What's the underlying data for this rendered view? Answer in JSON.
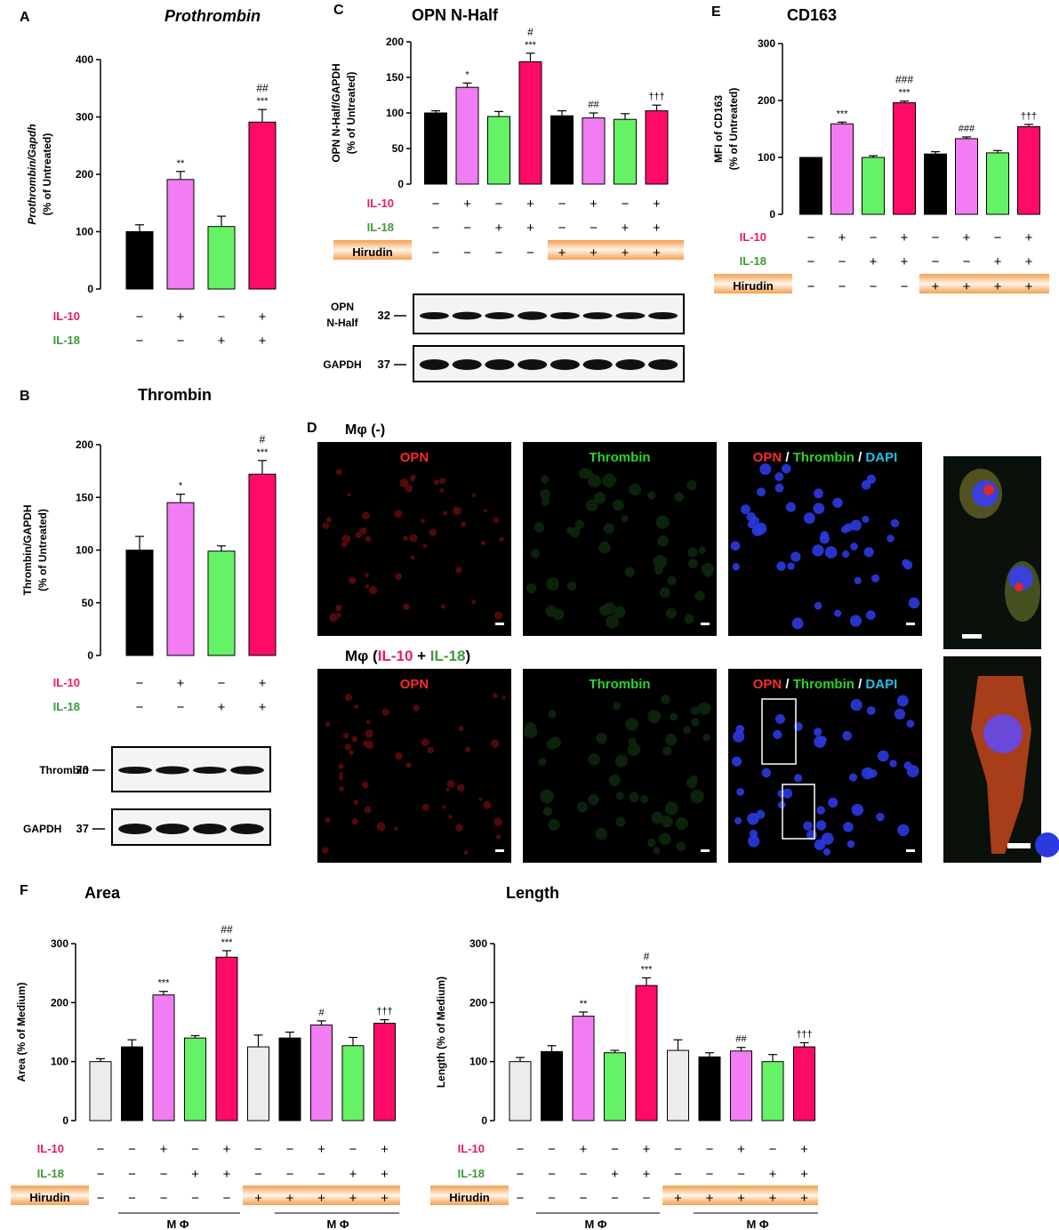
{
  "colors": {
    "untreated": "#000000",
    "il10": "#f27cf2",
    "il18": "#66f266",
    "combo": "#ff0a66",
    "medium": "#ececec",
    "il10_text": "#e8196a",
    "il18_text": "#3a9a3a",
    "opn_red": "#ff2a2a",
    "thrombin_green": "#2ad42a",
    "dapi_blue": "#22c0e8",
    "hirudin_band": "#f5a050"
  },
  "treatment_labels": {
    "il10": "IL-10",
    "il18": "IL-18",
    "hirudin": "Hirudin",
    "plus": "+",
    "minus": "−"
  },
  "chart_data": [
    {
      "panel": "A",
      "type": "bar",
      "title": "Prothrombin",
      "ylabel": "Prothrombin/Gapdh",
      "ylabel2": "(% of Untreated)",
      "yticks": [
        0,
        100,
        200,
        300,
        400
      ],
      "ylim": [
        0,
        400
      ],
      "conditions": {
        "il10": [
          "−",
          "+",
          "−",
          "+"
        ],
        "il18": [
          "−",
          "−",
          "+",
          "+"
        ]
      },
      "groups": [
        "untreated",
        "il10",
        "il18",
        "combo"
      ],
      "values": [
        100,
        191,
        109,
        291
      ],
      "errors": [
        12,
        14,
        18,
        22
      ],
      "annotations": [
        "",
        "**",
        "",
        "***"
      ],
      "annotations2": [
        "",
        "",
        "",
        "##"
      ]
    },
    {
      "panel": "B",
      "type": "bar",
      "title": "Thrombin",
      "ylabel": "Thrombin/GAPDH",
      "ylabel2": "(% of Untreated)",
      "yticks": [
        0,
        50,
        100,
        150,
        200
      ],
      "ylim": [
        0,
        200
      ],
      "conditions": {
        "il10": [
          "−",
          "+",
          "−",
          "+"
        ],
        "il18": [
          "−",
          "−",
          "+",
          "+"
        ]
      },
      "groups": [
        "untreated",
        "il10",
        "il18",
        "combo"
      ],
      "values": [
        100,
        145,
        99,
        172
      ],
      "errors": [
        13,
        8,
        5,
        13
      ],
      "annotations": [
        "",
        "*",
        "",
        "***"
      ],
      "annotations2": [
        "",
        "",
        "",
        "#"
      ],
      "blots": [
        {
          "label": "Thrombin",
          "kda": "70"
        },
        {
          "label": "GAPDH",
          "kda": "37"
        }
      ]
    },
    {
      "panel": "C",
      "type": "bar",
      "title": "OPN N-Half",
      "ylabel": "OPN N-Half/GAPDH",
      "ylabel2": "(% of Untreated)",
      "yticks": [
        0,
        50,
        100,
        150,
        200
      ],
      "ylim": [
        0,
        200
      ],
      "conditions": {
        "il10": [
          "−",
          "+",
          "−",
          "+",
          "−",
          "+",
          "−",
          "+"
        ],
        "il18": [
          "−",
          "−",
          "+",
          "+",
          "−",
          "−",
          "+",
          "+"
        ],
        "hirudin": [
          "−",
          "−",
          "−",
          "−",
          "+",
          "+",
          "+",
          "+"
        ]
      },
      "groups": [
        "untreated",
        "il10",
        "il18",
        "combo",
        "untreated",
        "il10",
        "il18",
        "combo"
      ],
      "values": [
        100,
        136,
        95,
        172,
        96,
        93,
        91,
        103
      ],
      "errors": [
        3,
        6,
        7,
        12,
        7,
        7,
        8,
        8
      ],
      "annotations": [
        "",
        "*",
        "",
        "***",
        "",
        "##",
        "",
        "†††"
      ],
      "annotations2": [
        "",
        "",
        "",
        "#",
        "",
        "",
        "",
        ""
      ],
      "blots": [
        {
          "label": "OPN",
          "label2": "N-Half",
          "kda": "32"
        },
        {
          "label": "GAPDH",
          "kda": "37"
        }
      ]
    },
    {
      "panel": "E",
      "type": "bar",
      "title": "CD163",
      "ylabel": "MFI of CD163",
      "ylabel2": "(% of Untreated)",
      "yticks": [
        0,
        100,
        200,
        300
      ],
      "ylim": [
        0,
        300
      ],
      "conditions": {
        "il10": [
          "−",
          "+",
          "−",
          "+",
          "−",
          "+",
          "−",
          "+"
        ],
        "il18": [
          "−",
          "−",
          "+",
          "+",
          "−",
          "−",
          "+",
          "+"
        ],
        "hirudin": [
          "−",
          "−",
          "−",
          "−",
          "+",
          "+",
          "+",
          "+"
        ]
      },
      "groups": [
        "untreated",
        "il10",
        "il18",
        "combo",
        "untreated",
        "il10",
        "il18",
        "combo"
      ],
      "values": [
        100,
        159,
        100,
        196,
        106,
        133,
        108,
        154
      ],
      "errors": [
        0,
        3,
        3,
        3,
        4,
        3,
        4,
        4
      ],
      "annotations": [
        "",
        "***",
        "",
        "***",
        "",
        "###",
        "",
        "†††"
      ],
      "annotations2": [
        "",
        "",
        "",
        "###",
        "",
        "",
        "",
        ""
      ]
    },
    {
      "panel": "F",
      "type": "bar",
      "title": "Area",
      "ylabel": "Area (% of Medium)",
      "yticks": [
        0,
        100,
        200,
        300
      ],
      "ylim": [
        0,
        300
      ],
      "conditions": {
        "il10": [
          "−",
          "−",
          "+",
          "−",
          "+",
          "−",
          "−",
          "+",
          "−",
          "+"
        ],
        "il18": [
          "−",
          "−",
          "−",
          "+",
          "+",
          "−",
          "−",
          "−",
          "+",
          "+"
        ],
        "hirudin": [
          "−",
          "−",
          "−",
          "−",
          "−",
          "+",
          "+",
          "+",
          "+",
          "+"
        ]
      },
      "groups": [
        "medium",
        "untreated",
        "il10",
        "il18",
        "combo",
        "medium",
        "untreated",
        "il10",
        "il18",
        "combo"
      ],
      "values": [
        100,
        125,
        213,
        140,
        277,
        125,
        140,
        162,
        127,
        165
      ],
      "errors": [
        5,
        12,
        6,
        4,
        11,
        20,
        10,
        7,
        14,
        6
      ],
      "annotations": [
        "",
        "",
        "***",
        "",
        "***",
        "",
        "",
        "#",
        "",
        "†††"
      ],
      "annotations2": [
        "",
        "",
        "",
        "",
        "##",
        "",
        "",
        "",
        "",
        ""
      ],
      "group_label": "M Φ"
    },
    {
      "panel": "",
      "type": "bar",
      "title": "Length",
      "ylabel": "Length (% of Medium)",
      "yticks": [
        0,
        100,
        200,
        300
      ],
      "ylim": [
        0,
        300
      ],
      "conditions": {
        "il10": [
          "−",
          "−",
          "+",
          "−",
          "+",
          "−",
          "−",
          "+",
          "−",
          "+"
        ],
        "il18": [
          "−",
          "−",
          "−",
          "+",
          "+",
          "−",
          "−",
          "−",
          "+",
          "+"
        ],
        "hirudin": [
          "−",
          "−",
          "−",
          "−",
          "−",
          "+",
          "+",
          "+",
          "+",
          "+"
        ]
      },
      "groups": [
        "medium",
        "untreated",
        "il10",
        "il18",
        "combo",
        "medium",
        "untreated",
        "il10",
        "il18",
        "combo"
      ],
      "values": [
        100,
        117,
        177,
        115,
        229,
        119,
        108,
        118,
        100,
        125
      ],
      "errors": [
        7,
        10,
        7,
        4,
        13,
        18,
        7,
        6,
        12,
        7
      ],
      "annotations": [
        "",
        "",
        "**",
        "",
        "***",
        "",
        "",
        "##",
        "",
        "†††"
      ],
      "annotations2": [
        "",
        "",
        "",
        "",
        "#",
        "",
        "",
        "",
        "",
        ""
      ],
      "group_label": "M Φ"
    }
  ],
  "panel_d": {
    "letter": "D",
    "row1_title": "Mφ (-)",
    "row2_title_prefix": "Mφ (",
    "row2_il10": "IL-10",
    "row2_plus": " + ",
    "row2_il18": "IL-18",
    "row2_suffix": ")",
    "opn": "OPN",
    "thrombin": "Thrombin",
    "dapi": "DAPI",
    "slash": " / "
  }
}
